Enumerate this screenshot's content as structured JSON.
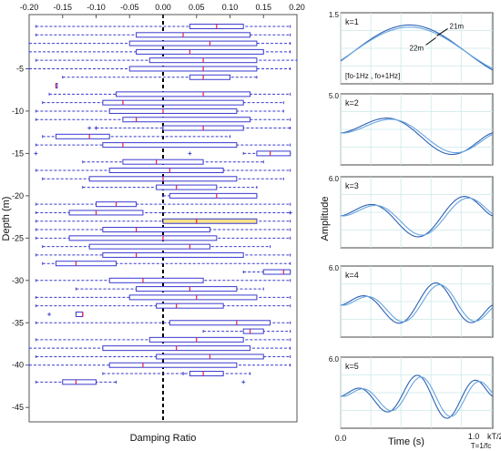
{
  "chart_data": [
    {
      "type": "box",
      "title": "",
      "xlabel": "Damping Ratio",
      "ylabel": "Depth (m)",
      "xlim": [
        -0.2,
        0.2
      ],
      "ylim": [
        0,
        -46
      ],
      "xticks": [
        -0.2,
        -0.15,
        -0.1,
        -0.05,
        0.0,
        0.05,
        0.1,
        0.15,
        0.2
      ],
      "xtick_labels": [
        "-0.20",
        "-0.15",
        "-0.10",
        "-0.05",
        "0.00",
        "0.05",
        "0.10",
        "0.15",
        "0.20"
      ],
      "yticks": [
        -5,
        -10,
        -15,
        -20,
        -25,
        -30,
        -35,
        -40,
        -45
      ],
      "ytick_labels": [
        "-5",
        "-10",
        "-15",
        "-20",
        "-25",
        "-30",
        "-35",
        "-40",
        "-45"
      ],
      "reference_line_x": 0.0,
      "grid": false,
      "highlight_depth": -23,
      "colors": {
        "box": "#3a3ad0",
        "median": "#e0204a",
        "whisker": "#3a3ad0",
        "highlight_fill": "#f7e28a",
        "reference": "#000000"
      },
      "boxes": [
        {
          "depth": 0,
          "min": -0.19,
          "q1": 0.04,
          "median": 0.08,
          "q3": 0.12,
          "max": 0.19
        },
        {
          "depth": -1,
          "min": -0.19,
          "q1": -0.04,
          "median": 0.03,
          "q3": 0.13,
          "max": 0.19
        },
        {
          "depth": -2,
          "min": -0.2,
          "q1": -0.05,
          "median": 0.07,
          "q3": 0.14,
          "max": 0.19
        },
        {
          "depth": -3,
          "min": -0.2,
          "q1": -0.04,
          "median": 0.04,
          "q3": 0.15,
          "max": 0.19
        },
        {
          "depth": -4,
          "min": -0.19,
          "q1": -0.02,
          "median": 0.06,
          "q3": 0.14,
          "max": 0.2
        },
        {
          "depth": -5,
          "min": -0.2,
          "q1": -0.05,
          "median": 0.06,
          "q3": 0.14,
          "max": 0.19
        },
        {
          "depth": -6,
          "min": -0.15,
          "q1": 0.04,
          "median": 0.06,
          "q3": 0.1,
          "max": 0.14
        },
        {
          "depth": -7,
          "min": -0.16,
          "q1": -0.16,
          "median": -0.16,
          "q3": -0.16,
          "max": -0.16
        },
        {
          "depth": -8,
          "min": -0.17,
          "q1": -0.07,
          "median": 0.06,
          "q3": 0.13,
          "max": 0.19
        },
        {
          "depth": -9,
          "min": -0.18,
          "q1": -0.09,
          "median": -0.06,
          "q3": 0.12,
          "max": 0.18
        },
        {
          "depth": -10,
          "min": -0.19,
          "q1": -0.08,
          "median": 0.0,
          "q3": 0.11,
          "max": 0.18
        },
        {
          "depth": -11,
          "min": -0.19,
          "q1": -0.06,
          "median": -0.04,
          "q3": 0.13,
          "max": 0.19
        },
        {
          "depth": -12,
          "min": -0.1,
          "q1": 0.0,
          "median": 0.06,
          "q3": 0.12,
          "max": 0.19
        },
        {
          "depth": -13,
          "min": -0.18,
          "q1": -0.16,
          "median": -0.11,
          "q3": -0.08,
          "max": 0.1
        },
        {
          "depth": -14,
          "min": -0.19,
          "q1": -0.09,
          "median": -0.06,
          "q3": 0.11,
          "max": 0.19
        },
        {
          "depth": -15,
          "min": 0.12,
          "q1": 0.14,
          "median": 0.16,
          "q3": 0.19,
          "max": 0.19
        },
        {
          "depth": -16,
          "min": -0.12,
          "q1": -0.06,
          "median": -0.01,
          "q3": 0.06,
          "max": 0.15
        },
        {
          "depth": -17,
          "min": -0.19,
          "q1": -0.08,
          "median": 0.01,
          "q3": 0.09,
          "max": 0.19
        },
        {
          "depth": -18,
          "min": -0.18,
          "q1": -0.11,
          "median": 0.0,
          "q3": 0.11,
          "max": 0.18
        },
        {
          "depth": -19,
          "min": -0.12,
          "q1": -0.01,
          "median": 0.02,
          "q3": 0.08,
          "max": 0.14
        },
        {
          "depth": -20,
          "min": 0.0,
          "q1": 0.01,
          "median": 0.08,
          "q3": 0.14,
          "max": 0.14
        },
        {
          "depth": -21,
          "min": -0.19,
          "q1": -0.1,
          "median": -0.07,
          "q3": -0.04,
          "max": 0.19
        },
        {
          "depth": -22,
          "min": -0.19,
          "q1": -0.14,
          "median": -0.1,
          "q3": -0.03,
          "max": 0.19
        },
        {
          "depth": -23,
          "min": -0.19,
          "q1": 0.0,
          "median": 0.05,
          "q3": 0.14,
          "max": 0.19
        },
        {
          "depth": -24,
          "min": -0.19,
          "q1": -0.09,
          "median": -0.04,
          "q3": 0.07,
          "max": 0.19
        },
        {
          "depth": -25,
          "min": -0.19,
          "q1": -0.14,
          "median": 0.0,
          "q3": 0.08,
          "max": 0.19
        },
        {
          "depth": -26,
          "min": -0.18,
          "q1": -0.11,
          "median": 0.04,
          "q3": 0.07,
          "max": 0.16
        },
        {
          "depth": -27,
          "min": -0.19,
          "q1": -0.09,
          "median": -0.04,
          "q3": 0.12,
          "max": 0.19
        },
        {
          "depth": -28,
          "min": -0.18,
          "q1": -0.16,
          "median": -0.13,
          "q3": -0.07,
          "max": 0.19
        },
        {
          "depth": -29,
          "min": 0.12,
          "q1": 0.15,
          "median": 0.18,
          "q3": 0.19,
          "max": 0.19
        },
        {
          "depth": -30,
          "min": -0.19,
          "q1": -0.08,
          "median": -0.03,
          "q3": 0.06,
          "max": 0.19
        },
        {
          "depth": -31,
          "min": -0.13,
          "q1": -0.04,
          "median": 0.04,
          "q3": 0.11,
          "max": 0.15
        },
        {
          "depth": -32,
          "min": -0.19,
          "q1": -0.05,
          "median": 0.05,
          "q3": 0.14,
          "max": 0.19
        },
        {
          "depth": -33,
          "min": -0.19,
          "q1": -0.01,
          "median": 0.02,
          "q3": 0.09,
          "max": 0.19
        },
        {
          "depth": -34,
          "min": -0.13,
          "q1": -0.13,
          "median": -0.12,
          "q3": -0.12,
          "max": -0.12
        },
        {
          "depth": -35,
          "min": -0.19,
          "q1": 0.01,
          "median": 0.11,
          "q3": 0.16,
          "max": 0.19
        },
        {
          "depth": -36,
          "min": 0.06,
          "q1": 0.12,
          "median": 0.13,
          "q3": 0.15,
          "max": 0.19
        },
        {
          "depth": -37,
          "min": -0.19,
          "q1": -0.02,
          "median": 0.05,
          "q3": 0.12,
          "max": 0.19
        },
        {
          "depth": -38,
          "min": -0.2,
          "q1": -0.09,
          "median": 0.02,
          "q3": 0.13,
          "max": 0.19
        },
        {
          "depth": -39,
          "min": -0.19,
          "q1": -0.01,
          "median": 0.07,
          "q3": 0.15,
          "max": 0.19
        },
        {
          "depth": -40,
          "min": -0.2,
          "q1": -0.08,
          "median": -0.03,
          "q3": 0.11,
          "max": 0.19
        },
        {
          "depth": -41,
          "min": -0.09,
          "q1": 0.04,
          "median": 0.06,
          "q3": 0.09,
          "max": 0.13
        },
        {
          "depth": -42,
          "min": -0.19,
          "q1": -0.15,
          "median": -0.13,
          "q3": -0.1,
          "max": -0.07
        }
      ],
      "outliers": [
        {
          "depth": -12,
          "x": -0.11
        },
        {
          "depth": -12,
          "x": -0.1
        },
        {
          "depth": -15,
          "x": -0.19
        },
        {
          "depth": -15,
          "x": 0.04
        },
        {
          "depth": -22,
          "x": 0.19
        },
        {
          "depth": -34,
          "x": -0.17
        },
        {
          "depth": -41,
          "x": 0.03
        },
        {
          "depth": -42,
          "x": 0.12
        }
      ]
    },
    {
      "type": "line",
      "title": "",
      "ylabel": "Amplitude",
      "xlabel": "Time (s)",
      "x_start_label": "0.0",
      "x_end_label": "1.0",
      "x_end_note": "kT/2",
      "x_note": "T=1/fc",
      "panels": [
        {
          "label": "k=1",
          "k": 1,
          "ymax_label": "1.5",
          "annotation": "[fo-1Hz , fo+1Hz]",
          "curve_labels": [
            "21m",
            "22m"
          ]
        },
        {
          "label": "k=2",
          "k": 2,
          "ymax_label": "5.0"
        },
        {
          "label": "k=3",
          "k": 3,
          "ymax_label": "6.0"
        },
        {
          "label": "k=4",
          "k": 4,
          "ymax_label": "6.0"
        },
        {
          "label": "k=5",
          "k": 5,
          "ymax_label": "6.0"
        }
      ],
      "grid": true,
      "colors": {
        "curve_a": "#2f5fb3",
        "curve_b": "#66a6de",
        "grid": "#cde8e8"
      }
    }
  ]
}
